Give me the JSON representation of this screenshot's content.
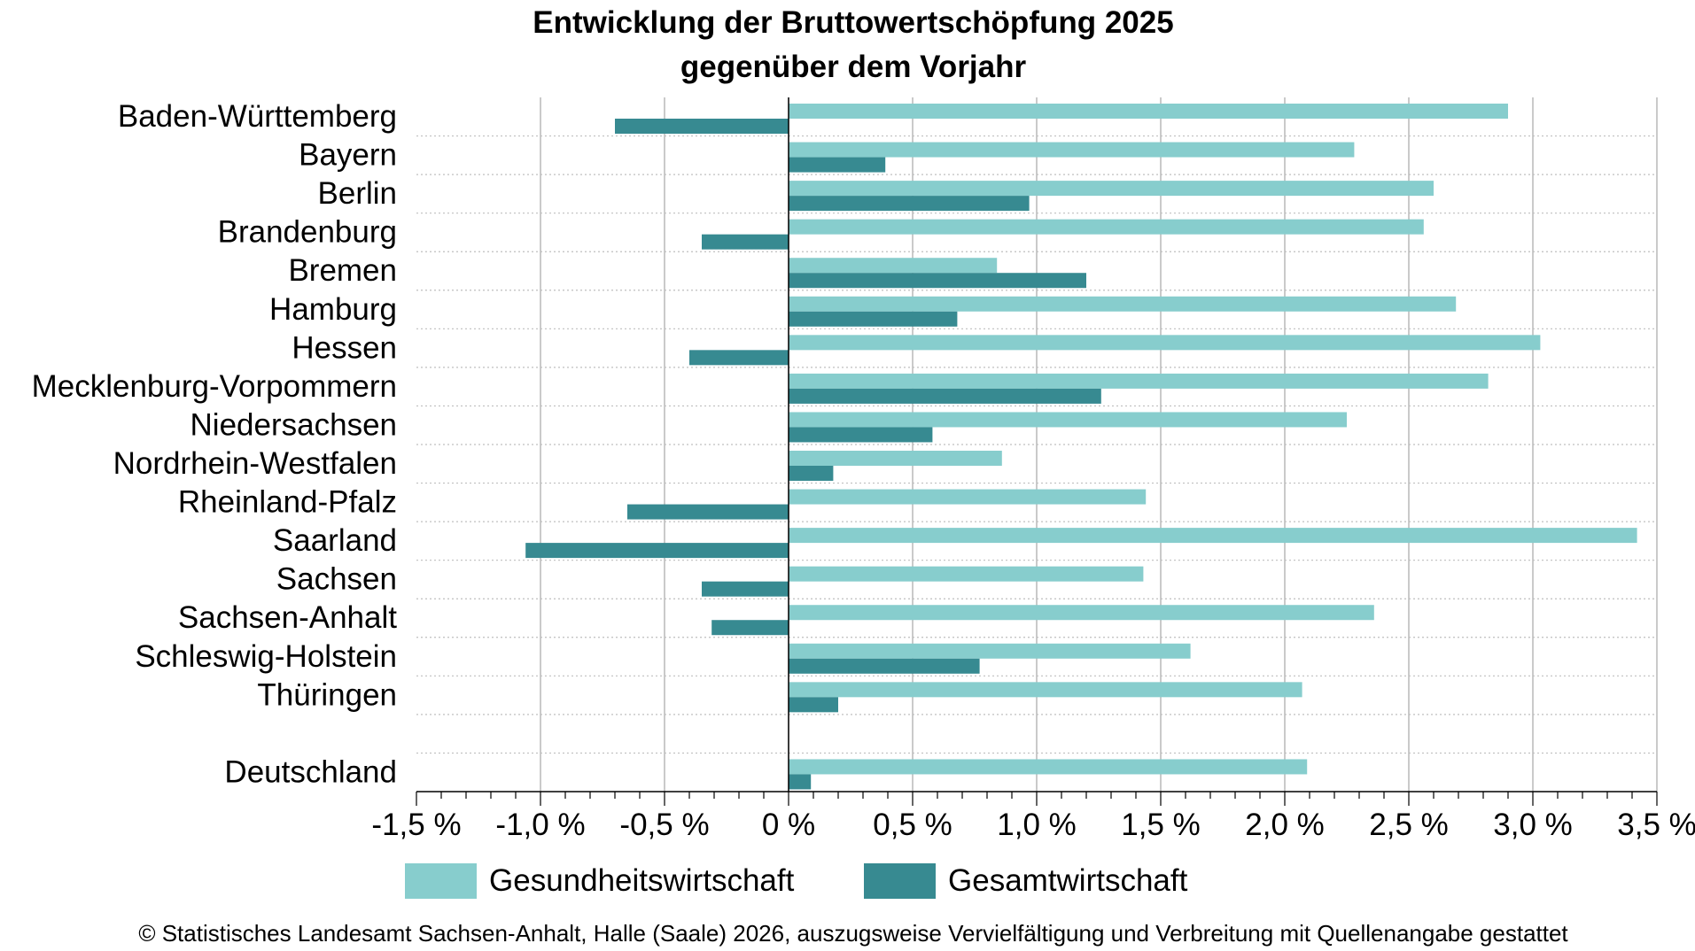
{
  "chart_data": {
    "type": "bar",
    "orientation": "horizontal",
    "title": "Entwicklung der Bruttowertschöpfung 2025",
    "subtitle": "gegenüber dem Vorjahr",
    "categories": [
      "Baden-Württemberg",
      "Bayern",
      "Berlin",
      "Brandenburg",
      "Bremen",
      "Hamburg",
      "Hessen",
      "Mecklenburg-Vorpommern",
      "Niedersachsen",
      "Nordrhein-Westfalen",
      "Rheinland-Pfalz",
      "Saarland",
      "Sachsen",
      "Sachsen-Anhalt",
      "Schleswig-Holstein",
      "Thüringen",
      "",
      "Deutschland"
    ],
    "series": [
      {
        "name": "Gesundheitswirtschaft",
        "color": "#87cdcd",
        "values": [
          2.9,
          2.28,
          2.6,
          2.56,
          0.84,
          2.69,
          3.03,
          2.82,
          2.25,
          0.86,
          1.44,
          3.42,
          1.43,
          2.36,
          1.62,
          2.07,
          null,
          2.09
        ]
      },
      {
        "name": "Gesamtwirtschaft",
        "color": "#378a91",
        "values": [
          -0.7,
          0.39,
          0.97,
          -0.35,
          1.2,
          0.68,
          -0.4,
          1.26,
          0.58,
          0.18,
          -0.65,
          -1.06,
          -0.35,
          -0.31,
          0.77,
          0.2,
          null,
          0.09
        ]
      }
    ],
    "xlim": [
      -1.5,
      3.5
    ],
    "xticks": [
      -1.5,
      -1.0,
      -0.5,
      0.0,
      0.5,
      1.0,
      1.5,
      2.0,
      2.5,
      3.0,
      3.5
    ],
    "xtick_labels": [
      "-1,5 %",
      "-1,0 %",
      "-0,5 %",
      "0 %",
      "0,5 %",
      "1,0 %",
      "1,5 %",
      "2,0 %",
      "2,5 %",
      "3,0 %",
      "3,5 %"
    ],
    "xlabel": "",
    "ylabel": "",
    "grid": true,
    "legend_position": "bottom",
    "footer": "© Statistisches Landesamt Sachsen-Anhalt, Halle (Saale) 2026, auszugsweise Vervielfältigung und Verbreitung mit Quellenangabe gestattet"
  }
}
